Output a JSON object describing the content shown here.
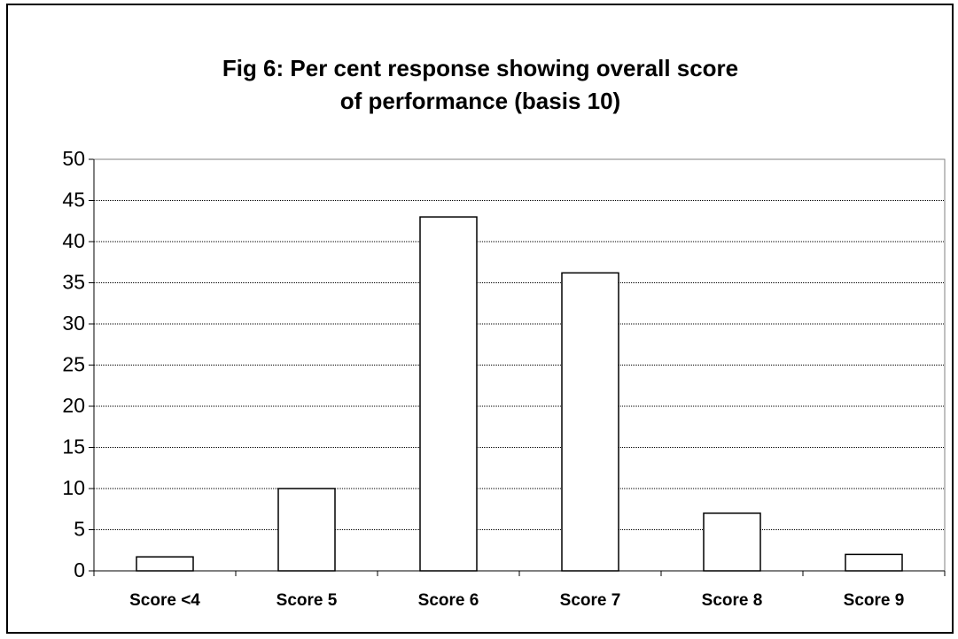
{
  "chart_data": {
    "type": "bar",
    "title": [
      "Fig 6: Per cent response showing overall score",
      "of performance (basis 10)"
    ],
    "categories": [
      "Score <4",
      "Score 5",
      "Score 6",
      "Score 7",
      "Score 8",
      "Score 9"
    ],
    "values": [
      1.7,
      10,
      43,
      36.2,
      7,
      2
    ],
    "color": "#ffffff",
    "ylim": [
      0,
      50
    ],
    "yticks": [
      0,
      5,
      10,
      15,
      20,
      25,
      30,
      35,
      40,
      45,
      50
    ],
    "grid": true
  }
}
